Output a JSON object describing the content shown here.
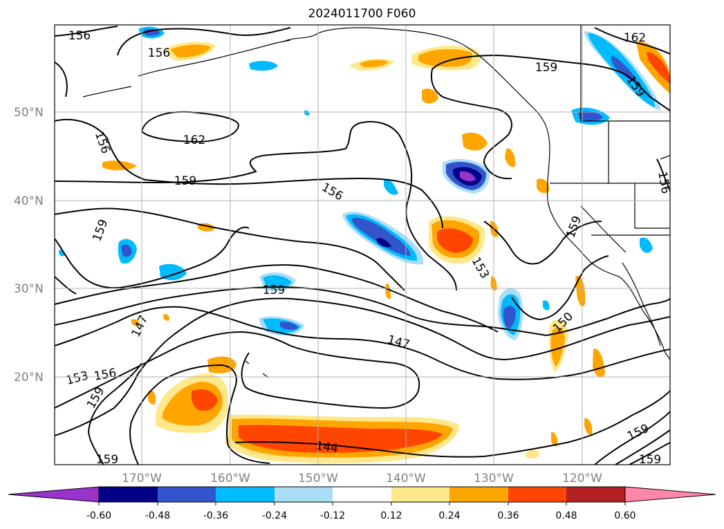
{
  "title": "2024011700 F060",
  "lat_labels": [
    "50°N",
    "40°N",
    "30°N",
    "20°N"
  ],
  "lon_labels": [
    "170°W",
    "160°W",
    "150°W",
    "140°W",
    "130°W",
    "120°W"
  ],
  "contour_labels": [
    "156",
    "156",
    "162",
    "156",
    "159",
    "162",
    "156",
    "159",
    "159",
    "156",
    "159",
    "153",
    "159",
    "150",
    "147",
    "153",
    "147",
    "156",
    "159",
    "144",
    "159",
    "159",
    "159",
    "159"
  ],
  "colorbar": {
    "colors": [
      "#9933cc",
      "#000088",
      "#3355cc",
      "#00bbff",
      "#aaddf6",
      "#ffffff",
      "#ffe88a",
      "#ffa500",
      "#ff4500",
      "#b22222",
      "#ff88aa"
    ],
    "ticks": [
      "-0.60",
      "-0.48",
      "-0.36",
      "-0.24",
      "-0.12",
      "0.12",
      "0.24",
      "0.36",
      "0.48",
      "0.60"
    ]
  },
  "colors": {
    "yellow": "#ffe88a",
    "orange": "#ffa500",
    "red": "#ff4500",
    "light_blue": "#aaddf6",
    "cyan": "#00bbff",
    "blue": "#3355cc",
    "navy": "#000088"
  }
}
